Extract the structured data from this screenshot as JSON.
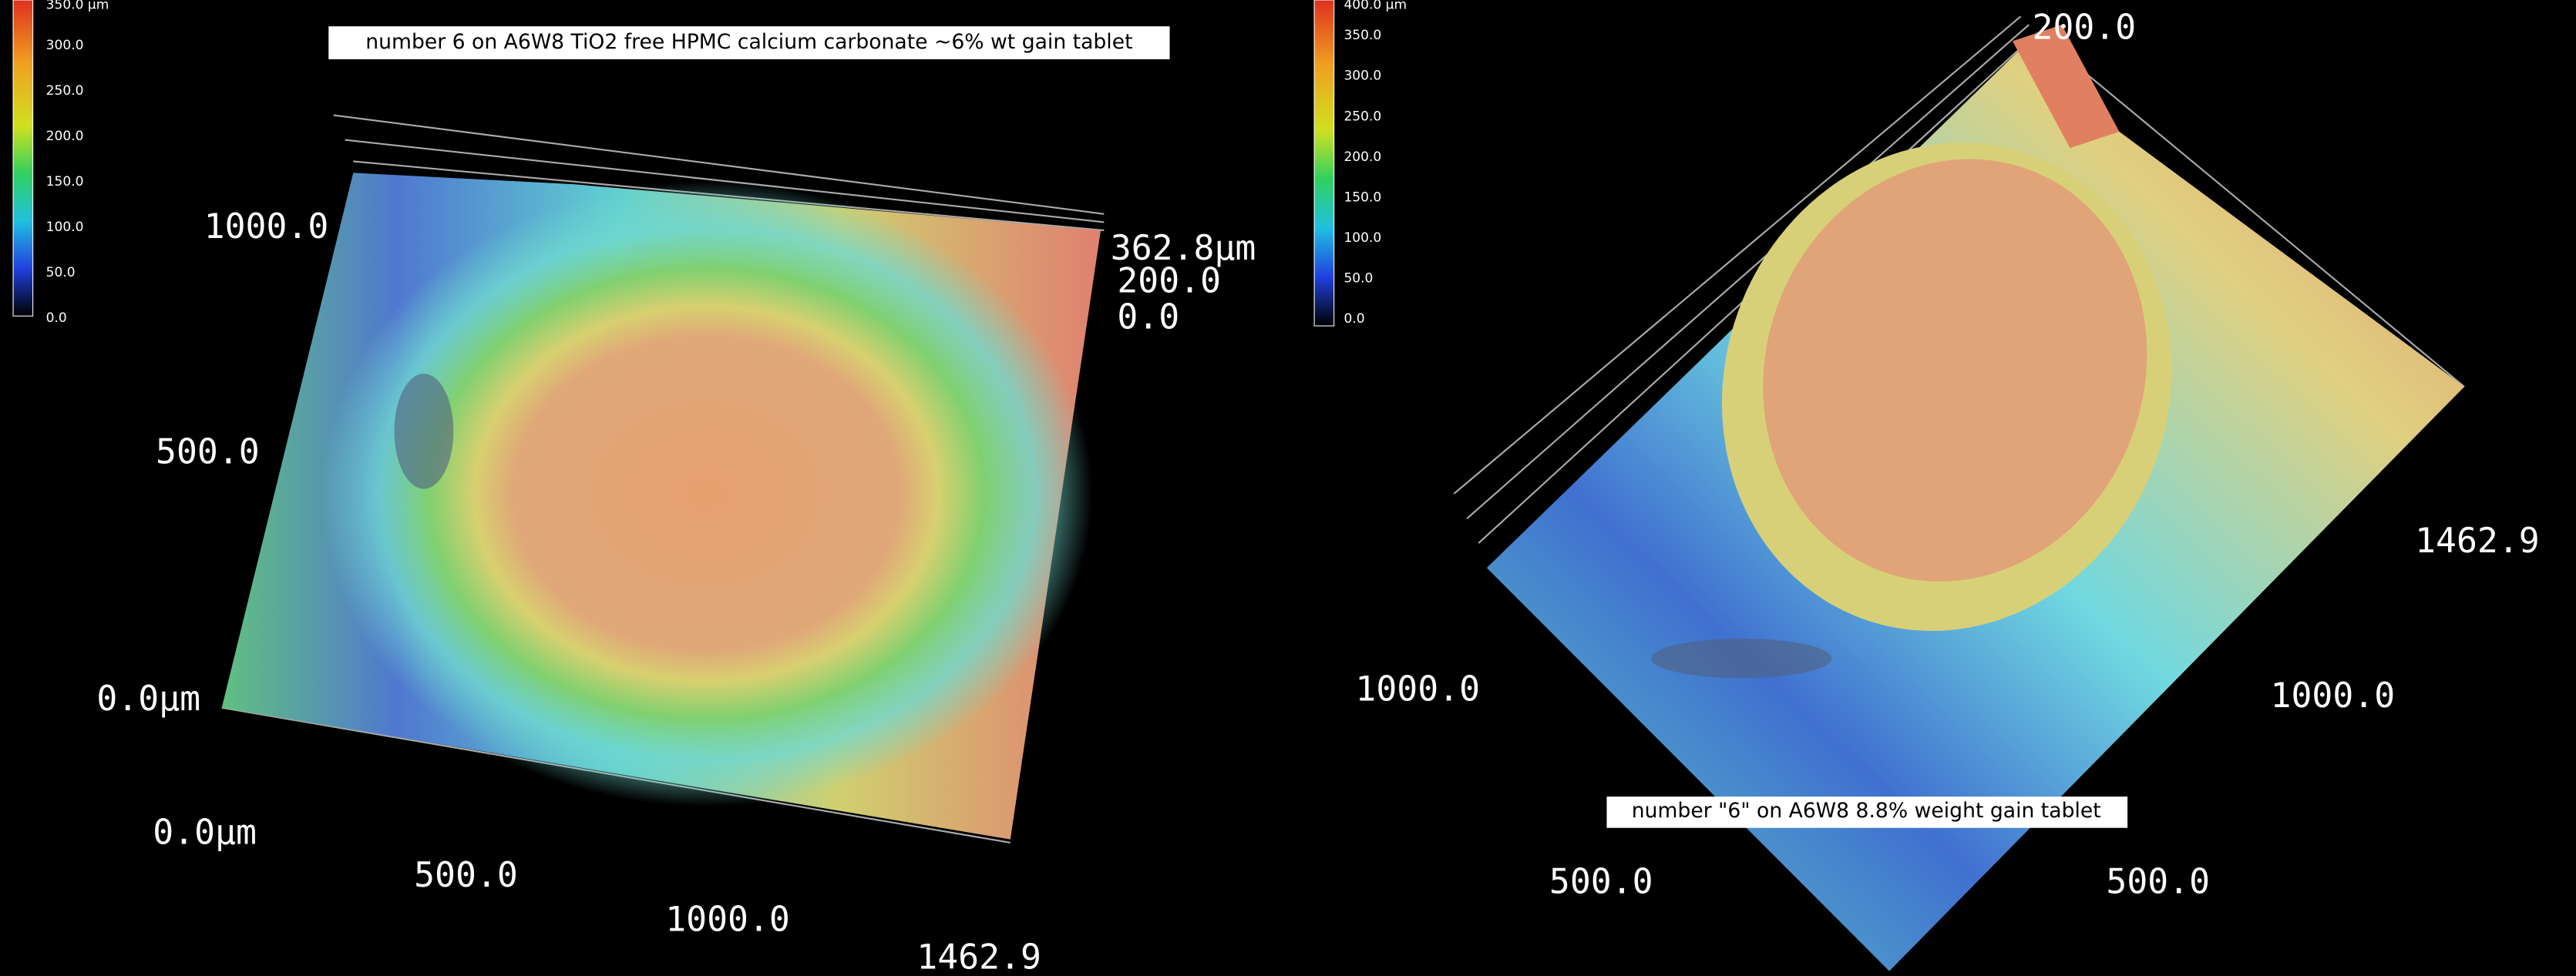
{
  "left": {
    "caption": "number 6 on A6W8 TiO2 free HPMC calcium carbonate ~6% wt gain tablet",
    "colorbar": [
      "350.0 µm",
      "300.0",
      "250.0",
      "200.0",
      "150.0",
      "100.0",
      "50.0",
      "0.0"
    ],
    "axis_labels": [
      "1000.0",
      "500.0",
      "0.0µm",
      "0.0µm",
      "500.0",
      "1000.0",
      "1462.9",
      "362.8µm",
      "200.0",
      "0.0"
    ]
  },
  "right": {
    "caption": "number \"6\" on A6W8 8.8% weight gain tablet",
    "colorbar": [
      "400.0 µm",
      "350.0",
      "300.0",
      "250.0",
      "200.0",
      "150.0",
      "100.0",
      "50.0",
      "0.0"
    ],
    "axis_labels": [
      "200.0",
      "1462.9",
      "1000.0",
      "1000.0",
      "500.0",
      "500.0"
    ]
  }
}
